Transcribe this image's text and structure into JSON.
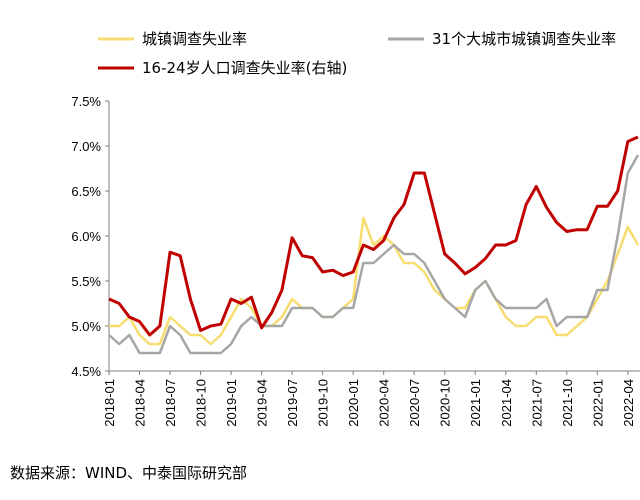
{
  "chart_data": {
    "type": "line",
    "legend": {
      "entries": [
        {
          "series": 0,
          "label": "城镇调查失业率"
        },
        {
          "series": 1,
          "label": "31个大城市城镇调查失业率"
        },
        {
          "series": 2,
          "label": "16-24岁人口调查失业率(右轴)"
        }
      ],
      "placement": "top"
    },
    "ylim": [
      4.5,
      7.5
    ],
    "yticks": [
      "4.5%",
      "5.0%",
      "5.5%",
      "6.0%",
      "6.5%",
      "7.0%",
      "7.5%"
    ],
    "grid": false,
    "x": [
      "2018-01",
      "2018-02",
      "2018-03",
      "2018-04",
      "2018-05",
      "2018-06",
      "2018-07",
      "2018-08",
      "2018-09",
      "2018-10",
      "2018-11",
      "2018-12",
      "2019-01",
      "2019-02",
      "2019-03",
      "2019-04",
      "2019-05",
      "2019-06",
      "2019-07",
      "2019-08",
      "2019-09",
      "2019-10",
      "2019-11",
      "2019-12",
      "2020-01",
      "2020-02",
      "2020-03",
      "2020-04",
      "2020-05",
      "2020-06",
      "2020-07",
      "2020-08",
      "2020-09",
      "2020-10",
      "2020-11",
      "2020-12",
      "2021-01",
      "2021-02",
      "2021-03",
      "2021-04",
      "2021-05",
      "2021-06",
      "2021-07",
      "2021-08",
      "2021-09",
      "2021-10",
      "2021-11",
      "2021-12",
      "2022-01",
      "2022-02",
      "2022-03",
      "2022-04",
      "2022-05"
    ],
    "xtick_labels": [
      "2018-01",
      "2018-04",
      "2018-07",
      "2018-10",
      "2019-01",
      "2019-04",
      "2019-07",
      "2019-10",
      "2020-01",
      "2020-04",
      "2020-07",
      "2020-10",
      "2021-01",
      "2021-04",
      "2021-07",
      "2021-10",
      "2022-01",
      "2022-04"
    ],
    "series": [
      {
        "color": "#F7DC6F",
        "values": [
          5.0,
          5.0,
          5.1,
          4.9,
          4.8,
          4.8,
          5.1,
          5.0,
          4.9,
          4.9,
          4.8,
          4.9,
          5.1,
          5.3,
          5.2,
          5.0,
          5.0,
          5.1,
          5.3,
          5.2,
          5.2,
          5.1,
          5.1,
          5.2,
          5.3,
          6.2,
          5.9,
          6.0,
          5.9,
          5.7,
          5.7,
          5.6,
          5.4,
          5.3,
          5.2,
          5.2,
          5.4,
          5.5,
          5.3,
          5.1,
          5.0,
          5.0,
          5.1,
          5.1,
          4.9,
          4.9,
          5.0,
          5.1,
          5.3,
          5.5,
          5.8,
          6.1,
          5.9
        ]
      },
      {
        "color": "#A6A6A6",
        "values": [
          4.9,
          4.8,
          4.9,
          4.7,
          4.7,
          4.7,
          5.0,
          4.9,
          4.7,
          4.7,
          4.7,
          4.7,
          4.8,
          5.0,
          5.1,
          5.0,
          5.0,
          5.0,
          5.2,
          5.2,
          5.2,
          5.1,
          5.1,
          5.2,
          5.2,
          5.7,
          5.7,
          5.8,
          5.9,
          5.8,
          5.8,
          5.7,
          5.5,
          5.3,
          5.2,
          5.1,
          5.4,
          5.5,
          5.3,
          5.2,
          5.2,
          5.2,
          5.2,
          5.3,
          5.0,
          5.1,
          5.1,
          5.1,
          5.4,
          5.4,
          6.0,
          6.7,
          6.9
        ]
      },
      {
        "color": "#C00000",
        "values": [
          5.3,
          5.25,
          5.1,
          5.05,
          4.9,
          5.0,
          5.82,
          5.78,
          5.3,
          4.95,
          5.0,
          5.02,
          5.3,
          5.25,
          5.32,
          4.98,
          5.15,
          5.4,
          5.98,
          5.78,
          5.76,
          5.6,
          5.62,
          5.56,
          5.6,
          5.9,
          5.85,
          5.95,
          6.2,
          6.35,
          6.7,
          6.7,
          6.25,
          5.8,
          5.7,
          5.58,
          5.65,
          5.75,
          5.9,
          5.9,
          5.95,
          6.35,
          6.55,
          6.32,
          6.15,
          6.05,
          6.07,
          6.07,
          6.33,
          6.33,
          6.5,
          7.05,
          7.1
        ]
      }
    ]
  },
  "source_note": "数据来源：WIND、中泰国际研究部"
}
